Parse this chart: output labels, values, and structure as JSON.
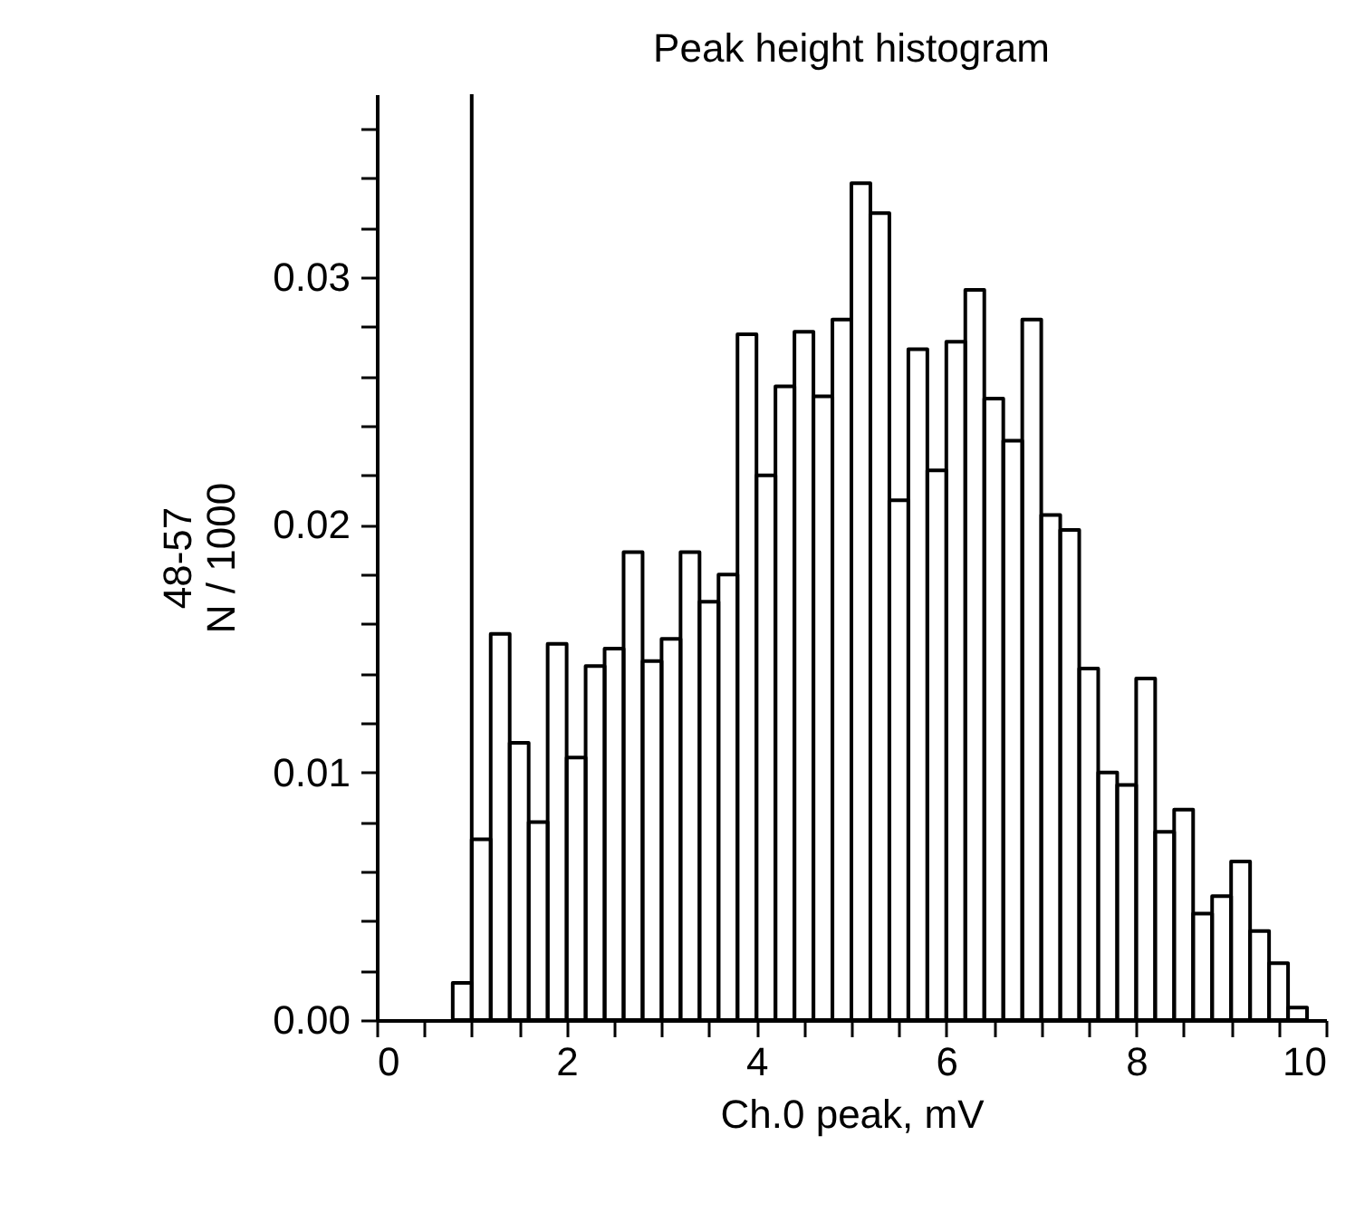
{
  "chart_data": {
    "type": "histogram",
    "title": "Peak height histogram",
    "xlabel": "Ch.0 peak, mV",
    "ylabel": "48-57\nN / 1000",
    "bins": [
      0.8,
      1.0,
      1.2,
      1.4,
      1.6,
      1.8,
      2.0,
      2.2,
      2.4,
      2.6,
      2.8,
      3.0,
      3.2,
      3.4,
      3.6,
      3.8,
      4.0,
      4.2,
      4.4,
      4.6,
      4.8,
      5.0,
      5.2,
      5.4,
      5.6,
      5.8,
      6.0,
      6.2,
      6.4,
      6.6,
      6.8,
      7.0,
      7.2,
      7.4,
      7.6,
      7.8,
      8.0,
      8.2,
      8.4,
      8.6,
      8.8,
      9.0,
      9.2,
      9.4,
      9.6,
      9.8
    ],
    "values": [
      0.0015,
      0.0073,
      0.0156,
      0.0112,
      0.008,
      0.0152,
      0.0106,
      0.0143,
      0.015,
      0.0189,
      0.0145,
      0.0154,
      0.0189,
      0.0169,
      0.018,
      0.0277,
      0.022,
      0.0256,
      0.0278,
      0.0252,
      0.0283,
      0.0338,
      0.0326,
      0.021,
      0.0271,
      0.0222,
      0.0274,
      0.0295,
      0.0251,
      0.0234,
      0.0283,
      0.0204,
      0.0198,
      0.0142,
      0.01,
      0.0095,
      0.0138,
      0.0076,
      0.0085,
      0.0043,
      0.005,
      0.0064,
      0.0036,
      0.0023,
      0.0005
    ],
    "color": "#000000",
    "xlim": [
      0,
      10
    ],
    "xticks": [
      0,
      {
        "value": 0.5,
        "label": null
      },
      {
        "value": 1,
        "label": null
      },
      {
        "value": 1.5,
        "label": null
      },
      2,
      {
        "value": 2.5,
        "label": null
      },
      {
        "value": 3,
        "label": null
      },
      {
        "value": 3.5,
        "label": null
      },
      4,
      {
        "value": 4.5,
        "label": null
      },
      {
        "value": 5,
        "label": null
      },
      {
        "value": 5.5,
        "label": null
      },
      6,
      {
        "value": 6.5,
        "label": null
      },
      {
        "value": 7,
        "label": null
      },
      {
        "value": 7.5,
        "label": null
      },
      8,
      {
        "value": 8.5,
        "label": null
      },
      {
        "value": 9,
        "label": null
      },
      {
        "value": 9.5,
        "label": null
      },
      10
    ],
    "ylim": [
      0,
      0.0374
    ],
    "yticks": [
      {
        "value": 0,
        "label": "0.00"
      },
      {
        "value": 0.002,
        "label": null
      },
      {
        "value": 0.004,
        "label": null
      },
      {
        "value": 0.006,
        "label": null
      },
      {
        "value": 0.008,
        "label": null
      },
      {
        "value": 0.01,
        "label": "0.01"
      },
      {
        "value": 0.012,
        "label": null
      },
      {
        "value": 0.014,
        "label": null
      },
      {
        "value": 0.016,
        "label": null
      },
      {
        "value": 0.018,
        "label": null
      },
      {
        "value": 0.02,
        "label": "0.02"
      },
      {
        "value": 0.022,
        "label": null
      },
      {
        "value": 0.024,
        "label": null
      },
      {
        "value": 0.026,
        "label": null
      },
      {
        "value": 0.028,
        "label": null
      },
      {
        "value": 0.03,
        "label": "0.03"
      },
      {
        "value": 0.032,
        "label": null
      },
      {
        "value": 0.034,
        "label": null
      },
      {
        "value": 0.036,
        "label": null
      }
    ],
    "ref_lines": [
      {
        "axis": "x",
        "value": 1.0,
        "color": "#000000"
      }
    ],
    "grid": false
  }
}
